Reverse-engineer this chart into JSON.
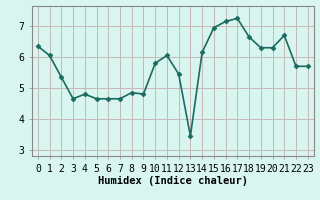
{
  "x": [
    0,
    1,
    2,
    3,
    4,
    5,
    6,
    7,
    8,
    9,
    10,
    11,
    12,
    13,
    14,
    15,
    16,
    17,
    18,
    19,
    20,
    21,
    22,
    23
  ],
  "y": [
    6.35,
    6.05,
    5.35,
    4.65,
    4.8,
    4.65,
    4.65,
    4.65,
    4.85,
    4.8,
    5.8,
    6.05,
    5.45,
    3.45,
    6.15,
    6.95,
    7.15,
    7.25,
    6.65,
    6.3,
    6.3,
    6.7,
    5.7,
    5.7
  ],
  "line_color": "#1a6b60",
  "marker": "D",
  "marker_size": 2.5,
  "bg_color": "#d8f5f0",
  "grid_color": "#c8b8b8",
  "xlabel": "Humidex (Indice chaleur)",
  "xlim": [
    -0.5,
    23.5
  ],
  "ylim": [
    2.8,
    7.65
  ],
  "yticks": [
    3,
    4,
    5,
    6,
    7
  ],
  "xtick_labels": [
    "0",
    "1",
    "2",
    "3",
    "4",
    "5",
    "6",
    "7",
    "8",
    "9",
    "10",
    "11",
    "12",
    "13",
    "14",
    "15",
    "16",
    "17",
    "18",
    "19",
    "20",
    "21",
    "22",
    "23"
  ],
  "xlabel_fontsize": 7.5,
  "tick_fontsize": 7,
  "line_width": 1.2,
  "fig_bg": "#d8f5f0",
  "spine_color": "#888888"
}
